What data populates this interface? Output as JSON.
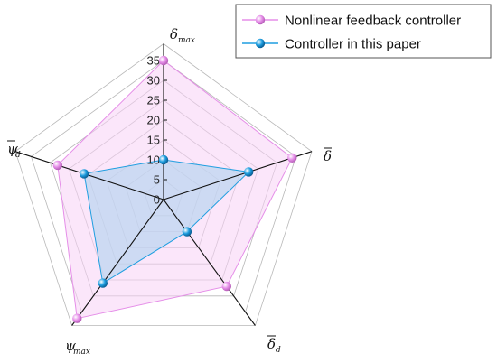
{
  "chart_data": {
    "type": "radar",
    "title": "",
    "axes": [
      {
        "id": "delta-max",
        "symbol": "δ",
        "subscript": "max",
        "overbar": false
      },
      {
        "id": "delta-bar",
        "symbol": "δ",
        "subscript": "",
        "overbar": true
      },
      {
        "id": "delta-d-bar",
        "symbol": "δ",
        "subscript": "d",
        "overbar": true
      },
      {
        "id": "psi-max",
        "symbol": "ψ",
        "subscript": "max",
        "overbar": false
      },
      {
        "id": "psi-d-bar",
        "symbol": "ψ",
        "subscript": "d",
        "overbar": true
      }
    ],
    "radial_range": [
      0,
      35
    ],
    "radial_ticks": [
      0,
      5,
      10,
      15,
      20,
      25,
      30,
      35
    ],
    "grid": true,
    "legend_position": "top-right",
    "series": [
      {
        "name": "Nonlinear feedback controller",
        "color": "#e58ee8",
        "fill": "#f7d2f5",
        "values": [
          35,
          34,
          27,
          37,
          28
        ]
      },
      {
        "name": "Controller in this paper",
        "color": "#1e9ee0",
        "fill": "#b9d4f0",
        "values": [
          10,
          22.5,
          10,
          26,
          21
        ]
      }
    ]
  }
}
